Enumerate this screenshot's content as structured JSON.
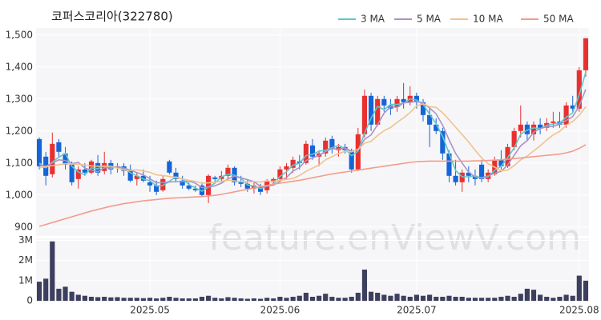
{
  "chart_data": {
    "type": "candlestick",
    "title": "코퍼스코리아(322780)",
    "watermark": "feature.enViewV.com",
    "categories": [
      null,
      null,
      null,
      null,
      null,
      null,
      null,
      null,
      null,
      null,
      null,
      null,
      null,
      null,
      null,
      null,
      null,
      "2025.05",
      null,
      null,
      null,
      null,
      null,
      null,
      null,
      null,
      null,
      null,
      null,
      null,
      null,
      null,
      null,
      null,
      null,
      null,
      null,
      "2025.06",
      null,
      null,
      null,
      null,
      null,
      null,
      null,
      null,
      null,
      null,
      null,
      null,
      null,
      null,
      null,
      null,
      null,
      null,
      null,
      null,
      "2025.07",
      null,
      null,
      null,
      null,
      null,
      null,
      null,
      null,
      null,
      null,
      null,
      null,
      null,
      null,
      null,
      null,
      null,
      null,
      null,
      null,
      null,
      null,
      null,
      null,
      "2025.08",
      null
    ],
    "open": [
      1175,
      1120,
      1065,
      1165,
      1130,
      1095,
      1050,
      1080,
      1070,
      1100,
      1075,
      1100,
      1085,
      1090,
      1080,
      1050,
      1060,
      1040,
      1030,
      1015,
      1105,
      1070,
      1045,
      1030,
      1020,
      1030,
      1000,
      1055,
      1050,
      1060,
      1085,
      1040,
      1035,
      1020,
      1025,
      1015,
      1040,
      1050,
      1080,
      1085,
      1105,
      1100,
      1155,
      1120,
      1130,
      1175,
      1140,
      1150,
      1140,
      1080,
      1190,
      1310,
      1220,
      1300,
      1280,
      1275,
      1300,
      1290,
      1310,
      1290,
      1250,
      1220,
      1200,
      1130,
      1060,
      1040,
      1070,
      1060,
      1095,
      1050,
      1065,
      1110,
      1090,
      1150,
      1200,
      1220,
      1190,
      1220,
      1210,
      1225,
      1230,
      1220,
      1280,
      1270,
      1390
    ],
    "high": [
      1180,
      1135,
      1195,
      1175,
      1150,
      1105,
      1090,
      1100,
      1110,
      1125,
      1135,
      1110,
      1100,
      1100,
      1095,
      1070,
      1080,
      1060,
      1045,
      1060,
      1110,
      1085,
      1060,
      1040,
      1030,
      1040,
      1065,
      1060,
      1075,
      1095,
      1090,
      1060,
      1050,
      1040,
      1035,
      1050,
      1055,
      1090,
      1100,
      1120,
      1125,
      1170,
      1175,
      1140,
      1180,
      1185,
      1160,
      1160,
      1145,
      1210,
      1330,
      1320,
      1310,
      1310,
      1300,
      1310,
      1350,
      1340,
      1320,
      1300,
      1270,
      1240,
      1210,
      1140,
      1110,
      1080,
      1090,
      1080,
      1110,
      1080,
      1120,
      1140,
      1160,
      1210,
      1280,
      1230,
      1230,
      1240,
      1240,
      1260,
      1260,
      1290,
      1310,
      1400,
      1490
    ],
    "low": [
      1080,
      1030,
      1055,
      1120,
      1080,
      1030,
      1020,
      1060,
      1065,
      1060,
      1065,
      1065,
      1070,
      1060,
      1040,
      1030,
      1040,
      1010,
      1000,
      1010,
      1065,
      1040,
      1020,
      1015,
      1010,
      995,
      975,
      1040,
      1040,
      1045,
      1030,
      1025,
      1010,
      1005,
      1000,
      1005,
      1030,
      1040,
      1050,
      1070,
      1080,
      1095,
      1110,
      1090,
      1120,
      1130,
      1120,
      1130,
      1070,
      1075,
      1180,
      1200,
      1215,
      1260,
      1250,
      1260,
      1270,
      1280,
      1270,
      1230,
      1150,
      1190,
      1110,
      1040,
      1030,
      1010,
      1040,
      1030,
      1040,
      1040,
      1060,
      1080,
      1085,
      1140,
      1180,
      1170,
      1170,
      1190,
      1200,
      1210,
      1210,
      1210,
      1260,
      1260,
      1370
    ],
    "close": [
      1090,
      1060,
      1160,
      1135,
      1095,
      1040,
      1080,
      1070,
      1105,
      1070,
      1100,
      1080,
      1090,
      1075,
      1045,
      1060,
      1045,
      1030,
      1010,
      1050,
      1070,
      1050,
      1030,
      1020,
      1015,
      1000,
      1060,
      1050,
      1060,
      1085,
      1040,
      1035,
      1020,
      1030,
      1010,
      1045,
      1050,
      1080,
      1090,
      1110,
      1100,
      1160,
      1120,
      1130,
      1170,
      1145,
      1150,
      1140,
      1080,
      1190,
      1310,
      1220,
      1300,
      1280,
      1270,
      1300,
      1290,
      1310,
      1290,
      1250,
      1220,
      1200,
      1130,
      1060,
      1040,
      1070,
      1060,
      1050,
      1050,
      1070,
      1110,
      1090,
      1150,
      1200,
      1220,
      1190,
      1220,
      1210,
      1225,
      1230,
      1220,
      1280,
      1270,
      1390,
      1490
    ],
    "up_color": "#e8312f",
    "down_color": "#1565d8",
    "ylim": [
      872,
      1522
    ],
    "yticks": [
      900,
      {
        "value": 1000,
        "label": "1,000"
      },
      {
        "value": 1100,
        "label": "1,100"
      },
      {
        "value": 1200,
        "label": "1,200"
      },
      {
        "value": 1300,
        "label": "1,300"
      },
      {
        "value": 1400,
        "label": "1,400"
      },
      {
        "value": 1500,
        "label": "1,500"
      }
    ],
    "grid": true,
    "legend_position": "top-right",
    "series": [
      {
        "name": "3 MA",
        "color": "#5cc8cc",
        "values": [
          1100,
          1085,
          1103,
          1118,
          1130,
          1090,
          1072,
          1063,
          1085,
          1082,
          1092,
          1083,
          1090,
          1082,
          1070,
          1060,
          1050,
          1045,
          1028,
          1030,
          1043,
          1057,
          1050,
          1033,
          1022,
          1012,
          1025,
          1037,
          1057,
          1065,
          1062,
          1053,
          1032,
          1028,
          1020,
          1028,
          1035,
          1058,
          1073,
          1093,
          1100,
          1123,
          1127,
          1137,
          1140,
          1148,
          1155,
          1145,
          1123,
          1137,
          1193,
          1240,
          1277,
          1267,
          1283,
          1283,
          1287,
          1300,
          1297,
          1283,
          1253,
          1223,
          1183,
          1130,
          1077,
          1057,
          1057,
          1060,
          1053,
          1057,
          1077,
          1090,
          1117,
          1147,
          1190,
          1203,
          1210,
          1207,
          1218,
          1222,
          1225,
          1243,
          1257,
          1313,
          1383
        ]
      },
      {
        "name": "5 MA",
        "color": "#a993c6",
        "values": [
          1095,
          1090,
          1100,
          1110,
          1108,
          1098,
          1102,
          1084,
          1078,
          1073,
          1085,
          1085,
          1089,
          1084,
          1078,
          1070,
          1063,
          1051,
          1038,
          1039,
          1041,
          1042,
          1042,
          1044,
          1037,
          1023,
          1025,
          1029,
          1037,
          1051,
          1059,
          1054,
          1048,
          1042,
          1027,
          1028,
          1031,
          1043,
          1055,
          1075,
          1086,
          1108,
          1116,
          1124,
          1136,
          1145,
          1143,
          1147,
          1137,
          1141,
          1174,
          1188,
          1220,
          1256,
          1276,
          1274,
          1288,
          1290,
          1292,
          1288,
          1272,
          1254,
          1218,
          1172,
          1130,
          1100,
          1072,
          1056,
          1054,
          1060,
          1068,
          1074,
          1094,
          1124,
          1154,
          1170,
          1196,
          1208,
          1213,
          1215,
          1221,
          1233,
          1245,
          1278,
          1330
        ]
      },
      {
        "name": "10 MA",
        "color": "#f1c28e",
        "values": [
          1085,
          1088,
          1092,
          1095,
          1098,
          1097,
          1096,
          1094,
          1091,
          1090,
          1090,
          1090,
          1084,
          1078,
          1077,
          1079,
          1075,
          1071,
          1063,
          1061,
          1058,
          1055,
          1050,
          1046,
          1043,
          1037,
          1038,
          1040,
          1043,
          1047,
          1044,
          1042,
          1041,
          1042,
          1041,
          1044,
          1043,
          1046,
          1049,
          1052,
          1061,
          1074,
          1084,
          1094,
          1110,
          1120,
          1130,
          1136,
          1135,
          1143,
          1162,
          1168,
          1186,
          1201,
          1211,
          1227,
          1241,
          1258,
          1279,
          1285,
          1276,
          1274,
          1257,
          1235,
          1212,
          1189,
          1166,
          1140,
          1116,
          1098,
          1087,
          1076,
          1078,
          1092,
          1110,
          1122,
          1138,
          1154,
          1172,
          1188,
          1199,
          1218,
          1230,
          1249,
          1276
        ]
      },
      {
        "name": "50 MA",
        "color": "#f39c8b",
        "values": [
          902,
          908,
          914,
          920,
          926,
          932,
          938,
          944,
          950,
          955,
          960,
          965,
          969,
          973,
          976,
          979,
          982,
          984,
          986,
          988,
          990,
          991,
          992,
          993,
          994,
          995,
          997,
          999,
          1002,
          1006,
          1010,
          1014,
          1018,
          1022,
          1026,
          1030,
          1034,
          1037,
          1040,
          1043,
          1046,
          1050,
          1054,
          1058,
          1062,
          1066,
          1069,
          1072,
          1075,
          1078,
          1081,
          1084,
          1087,
          1090,
          1093,
          1096,
          1099,
          1102,
          1104,
          1105,
          1106,
          1106,
          1106,
          1106,
          1106,
          1106,
          1106,
          1107,
          1107,
          1108,
          1109,
          1110,
          1112,
          1114,
          1116,
          1118,
          1120,
          1122,
          1124,
          1126,
          1128,
          1132,
          1137,
          1146,
          1157
        ]
      }
    ],
    "volume": {
      "color": "#3d3f5e",
      "ylim": [
        0,
        3100000
      ],
      "yticks": [
        0,
        {
          "value": 1000000,
          "label": "1M"
        },
        {
          "value": 2000000,
          "label": "2M"
        },
        {
          "value": 3000000,
          "label": "3M"
        }
      ],
      "values": [
        950000,
        1100000,
        2950000,
        600000,
        700000,
        450000,
        300000,
        250000,
        200000,
        180000,
        200000,
        170000,
        180000,
        150000,
        150000,
        150000,
        130000,
        150000,
        120000,
        150000,
        200000,
        150000,
        120000,
        120000,
        120000,
        200000,
        250000,
        150000,
        120000,
        180000,
        150000,
        120000,
        100000,
        120000,
        100000,
        150000,
        120000,
        200000,
        150000,
        200000,
        250000,
        400000,
        200000,
        250000,
        350000,
        200000,
        150000,
        150000,
        200000,
        400000,
        1550000,
        450000,
        400000,
        300000,
        250000,
        350000,
        250000,
        200000,
        300000,
        250000,
        300000,
        200000,
        200000,
        250000,
        200000,
        200000,
        150000,
        150000,
        150000,
        150000,
        150000,
        200000,
        250000,
        200000,
        350000,
        600000,
        550000,
        300000,
        200000,
        150000,
        200000,
        300000,
        250000,
        1250000,
        1000000
      ]
    }
  }
}
